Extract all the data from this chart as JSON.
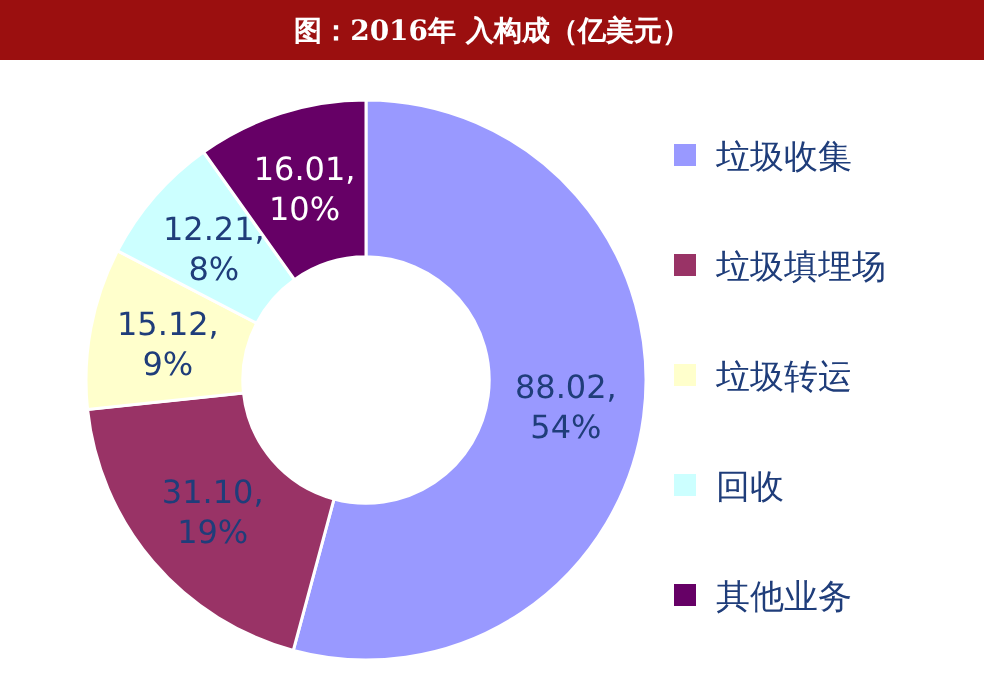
{
  "chart_data": {
    "type": "donut",
    "title": "图：2016年 入构成（亿美元）",
    "categories": [
      "垃圾收集",
      "垃圾填埋场",
      "垃圾转运",
      "回收",
      "其他业务"
    ],
    "values": [
      88.02,
      31.1,
      15.12,
      12.21,
      16.01
    ],
    "colors": [
      "#9999ff",
      "#993366",
      "#ffffcc",
      "#ccffff",
      "#660066"
    ],
    "value_labels": [
      "88.02, 54%",
      "31.10, 19%",
      "15.12, 9%",
      "12.21, 8%",
      "16.01, 10%"
    ],
    "legend": "right"
  }
}
